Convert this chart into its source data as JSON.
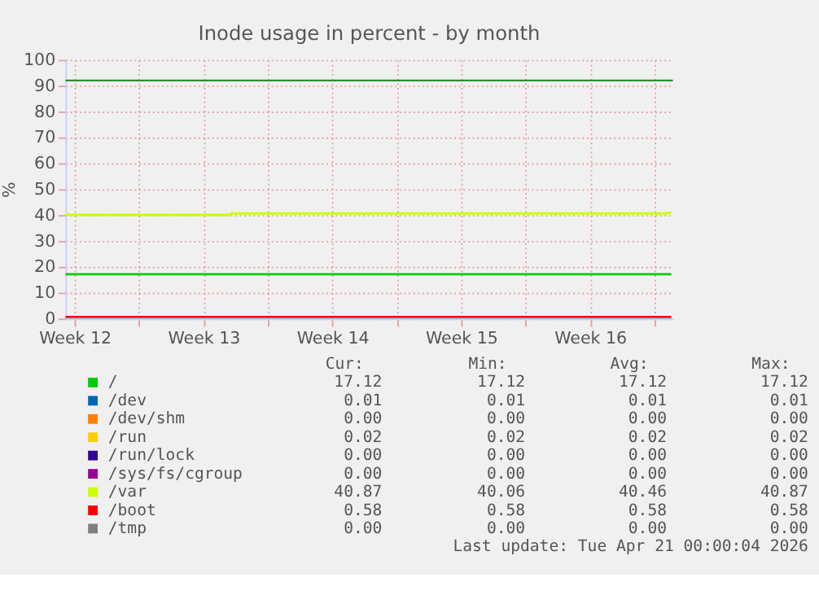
{
  "chart_data": {
    "type": "step",
    "title": "Inode usage in percent - by month",
    "ylabel": "%",
    "xlim": [
      "2026-03-19",
      "2026-04-21"
    ],
    "ylim": [
      0,
      100
    ],
    "xticks": [
      {
        "value": "2026-03-19T12:00",
        "label": "Week 12"
      },
      {
        "value": "2026-03-23",
        "label": null
      },
      {
        "value": "2026-03-26T12:00",
        "label": "Week 13"
      },
      {
        "value": "2026-03-30",
        "label": null
      },
      {
        "value": "2026-04-02T12:00",
        "label": "Week 14"
      },
      {
        "value": "2026-04-06",
        "label": null
      },
      {
        "value": "2026-04-09T12:00",
        "label": "Week 15"
      },
      {
        "value": "2026-04-13",
        "label": null
      },
      {
        "value": "2026-04-16T12:00",
        "label": "Week 16"
      },
      {
        "value": "2026-04-20",
        "label": null
      }
    ],
    "yticks": [
      0,
      10,
      20,
      30,
      40,
      50,
      60,
      70,
      80,
      90,
      100
    ],
    "grid": true,
    "legend": "bottom",
    "series": [
      {
        "name": "/",
        "color": "#00cc00",
        "x": [
          "2026-03-19",
          "2026-04-20T22:00"
        ],
        "values": [
          17.12,
          17.12
        ]
      },
      {
        "name": "/dev",
        "color": "#0066b3"
      },
      {
        "name": "/dev/shm",
        "color": "#ff8000"
      },
      {
        "name": "/run",
        "color": "#ffcc00"
      },
      {
        "name": "/run/lock",
        "color": "#330099"
      },
      {
        "name": "/sys/fs/cgroup",
        "color": "#990099"
      },
      {
        "name": "/var",
        "color": "#ccff00",
        "x": [
          "2026-03-19",
          "2026-03-28",
          "2026-04-20T17:00",
          "2026-04-20T22:00"
        ],
        "values": [
          40.06,
          40.6,
          40.87,
          40.87
        ]
      },
      {
        "name": "/boot",
        "color": "#ff0000",
        "x": [
          "2026-03-19",
          "2026-04-20T22:00"
        ],
        "values": [
          0.58,
          0.58
        ]
      },
      {
        "name": "/tmp",
        "color": "#808080",
        "x": [
          "2026-03-19",
          "2026-04-20T22:00"
        ],
        "values": [
          0,
          0
        ]
      }
    ],
    "ref_lines": [
      {
        "axis": "y",
        "value": 92,
        "label": null,
        "color": "#2f8f2f"
      }
    ],
    "annotations": [
      "Cur:",
      "Min:",
      "Avg:",
      "Max:",
      "17.12",
      "17.12",
      "17.12",
      "17.12",
      "0.01",
      "0.01",
      "0.01",
      "0.01",
      "0.00",
      "0.00",
      "0.00",
      "0.00",
      "0.02",
      "0.02",
      "0.02",
      "0.02",
      "0.00",
      "0.00",
      "0.00",
      "0.00",
      "0.00",
      "0.00",
      "0.00",
      "0.00",
      "40.87",
      "40.06",
      "40.46",
      "40.87",
      "0.58",
      "0.58",
      "0.58",
      "0.58",
      "0.00",
      "0.00",
      "0.00",
      "0.00",
      "Last update: Tue Apr 21 00:00:04 2026"
    ]
  }
}
